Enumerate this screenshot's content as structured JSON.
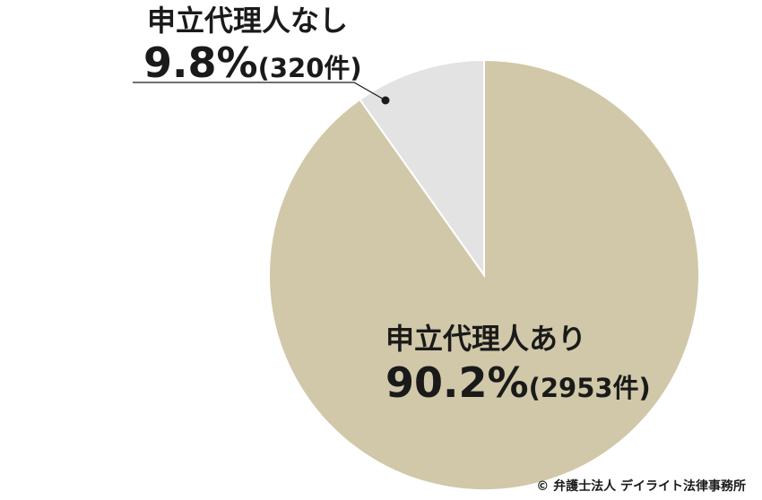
{
  "chart_data": {
    "type": "pie",
    "slices": [
      {
        "label": "申立代理人あり",
        "percent_label": "90.2%",
        "count_label": "(2953件)",
        "value": 90.2,
        "count": 2953,
        "color": "#d0c8a8"
      },
      {
        "label": "申立代理人なし",
        "percent_label": "9.8%",
        "count_label": "(320件)",
        "value": 9.8,
        "count": 320,
        "color": "#e3e3e3"
      }
    ]
  },
  "copyright": "© 弁護士法人 デイライト法律事務所"
}
